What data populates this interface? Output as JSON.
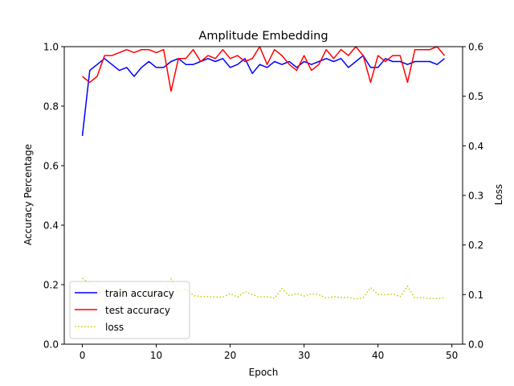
{
  "chart_data": {
    "type": "line",
    "title": "Amplitude Embedding",
    "xlabel": "Epoch",
    "ylabel": "Accuracy Percentage",
    "y2label": "Loss",
    "xlim": [
      -2.45,
      51.45
    ],
    "ylim": [
      0,
      1.0
    ],
    "y2lim": [
      0,
      0.6
    ],
    "xticks": [
      "0",
      "10",
      "20",
      "30",
      "40",
      "50"
    ],
    "yticks": [
      "0.0",
      "0.2",
      "0.4",
      "0.6",
      "0.8",
      "1.0"
    ],
    "y2ticks": [
      "0.0",
      "0.1",
      "0.2",
      "0.3",
      "0.4",
      "0.5",
      "0.6"
    ],
    "grid": false,
    "legend_position": "lower-left",
    "x": [
      0,
      1,
      2,
      3,
      4,
      5,
      6,
      7,
      8,
      9,
      10,
      11,
      12,
      13,
      14,
      15,
      16,
      17,
      18,
      19,
      20,
      21,
      22,
      23,
      24,
      25,
      26,
      27,
      28,
      29,
      30,
      31,
      32,
      33,
      34,
      35,
      36,
      37,
      38,
      39,
      40,
      41,
      42,
      43,
      44,
      45,
      46,
      47,
      48,
      49
    ],
    "series": [
      {
        "name": "train accuracy",
        "axis": "left",
        "color": "#0000ff",
        "style": "solid",
        "values": [
          0.7,
          0.92,
          0.94,
          0.96,
          0.94,
          0.92,
          0.93,
          0.9,
          0.93,
          0.95,
          0.93,
          0.93,
          0.95,
          0.96,
          0.94,
          0.94,
          0.95,
          0.96,
          0.95,
          0.96,
          0.93,
          0.94,
          0.96,
          0.91,
          0.94,
          0.93,
          0.95,
          0.94,
          0.95,
          0.93,
          0.95,
          0.94,
          0.95,
          0.96,
          0.95,
          0.96,
          0.93,
          0.95,
          0.97,
          0.93,
          0.93,
          0.96,
          0.95,
          0.95,
          0.94,
          0.95,
          0.95,
          0.95,
          0.94,
          0.96
        ]
      },
      {
        "name": "test accuracy",
        "axis": "left",
        "color": "#ff0000",
        "style": "solid",
        "values": [
          0.9,
          0.88,
          0.9,
          0.97,
          0.97,
          0.98,
          0.99,
          0.98,
          0.99,
          0.99,
          0.98,
          0.99,
          0.85,
          0.96,
          0.96,
          0.99,
          0.95,
          0.97,
          0.96,
          0.99,
          0.96,
          0.97,
          0.95,
          0.96,
          1.0,
          0.94,
          0.99,
          0.97,
          0.94,
          0.92,
          0.97,
          0.92,
          0.94,
          0.99,
          0.96,
          0.99,
          0.97,
          1.0,
          0.97,
          0.88,
          0.97,
          0.95,
          0.97,
          0.97,
          0.88,
          0.99,
          0.99,
          0.99,
          1.0,
          0.97
        ]
      },
      {
        "name": "loss",
        "axis": "right",
        "color": "#c8c800",
        "style": "dotted",
        "values": [
          0.133,
          0.122,
          0.116,
          0.112,
          0.113,
          0.11,
          0.108,
          0.106,
          0.104,
          0.104,
          0.103,
          0.103,
          0.132,
          0.105,
          0.112,
          0.098,
          0.096,
          0.096,
          0.095,
          0.095,
          0.102,
          0.095,
          0.106,
          0.1,
          0.095,
          0.096,
          0.093,
          0.112,
          0.098,
          0.102,
          0.097,
          0.102,
          0.1,
          0.093,
          0.096,
          0.094,
          0.094,
          0.091,
          0.094,
          0.114,
          0.1,
          0.1,
          0.101,
          0.096,
          0.117,
          0.093,
          0.094,
          0.092,
          0.092,
          0.094
        ]
      }
    ]
  }
}
